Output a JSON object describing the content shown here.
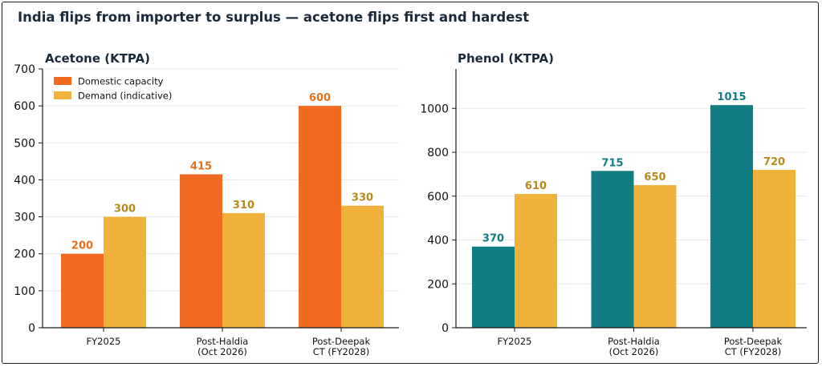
{
  "page": {
    "title": "India flips from importer to surplus — acetone flips first and hardest"
  },
  "colors": {
    "acetone_capacity": "#f26a21",
    "phenol_capacity": "#127c84",
    "demand": "#f0b23a",
    "acetone_label": "#e0721f",
    "phenol_label": "#127c84",
    "demand_label": "#b58a1a",
    "axis": "#1a1a1a",
    "grid": "#e8e8e8",
    "title": "#1b2a3a"
  },
  "chart_data": [
    {
      "type": "bar",
      "title": "Acetone (KTPA)",
      "categories": [
        [
          "FY2025"
        ],
        [
          "Post-Haldia",
          "(Oct 2026)"
        ],
        [
          "Post-Deepak",
          "CT (FY2028)"
        ]
      ],
      "series": [
        {
          "name": "Domestic capacity",
          "values": [
            200,
            415,
            600
          ],
          "color_key": "acetone_capacity",
          "label_color_key": "acetone_label"
        },
        {
          "name": "Demand (indicative)",
          "values": [
            300,
            310,
            330
          ],
          "color_key": "demand",
          "label_color_key": "demand_label"
        }
      ],
      "ylim": [
        0,
        700
      ],
      "yticks": [
        0,
        100,
        200,
        300,
        400,
        500,
        600,
        700
      ],
      "grid": true,
      "legend": "top-left"
    },
    {
      "type": "bar",
      "title": "Phenol (KTPA)",
      "categories": [
        [
          "FY2025"
        ],
        [
          "Post-Haldia",
          "(Oct 2026)"
        ],
        [
          "Post-Deepak",
          "CT (FY2028)"
        ]
      ],
      "series": [
        {
          "values": [
            370,
            715,
            1015
          ],
          "color_key": "phenol_capacity",
          "label_color_key": "phenol_label"
        },
        {
          "values": [
            610,
            650,
            720
          ],
          "color_key": "demand",
          "label_color_key": "demand_label"
        }
      ],
      "ylim": [
        0,
        1180
      ],
      "yticks": [
        0,
        200,
        400,
        600,
        800,
        1000
      ],
      "grid": true,
      "legend": "none"
    }
  ]
}
